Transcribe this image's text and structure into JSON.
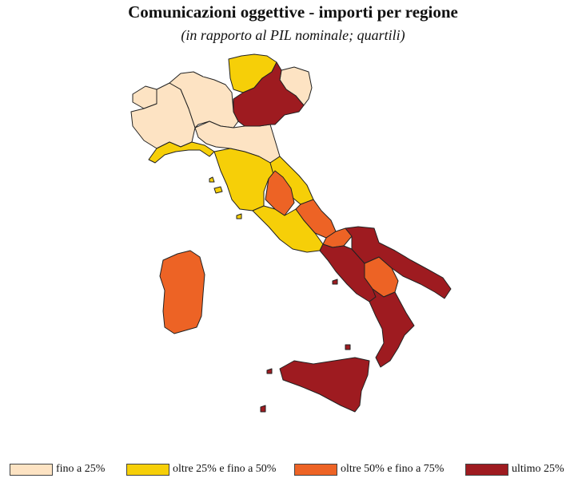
{
  "title": "Comunicazioni oggettive - importi per regione",
  "subtitle": "(in rapporto al PIL nominale; quartili)",
  "colors": {
    "q1": "#fde3c3",
    "q2": "#f6cf08",
    "q3": "#ed6325",
    "q4": "#9e1b20"
  },
  "legend": [
    {
      "label": "fino a 25%",
      "color": "#fde3c3"
    },
    {
      "label": "oltre 25% e fino a 50%",
      "color": "#f6cf08"
    },
    {
      "label": "oltre 50% e fino a 75%",
      "color": "#ed6325"
    },
    {
      "label": "ultimo 25%",
      "color": "#9e1b20"
    }
  ]
}
